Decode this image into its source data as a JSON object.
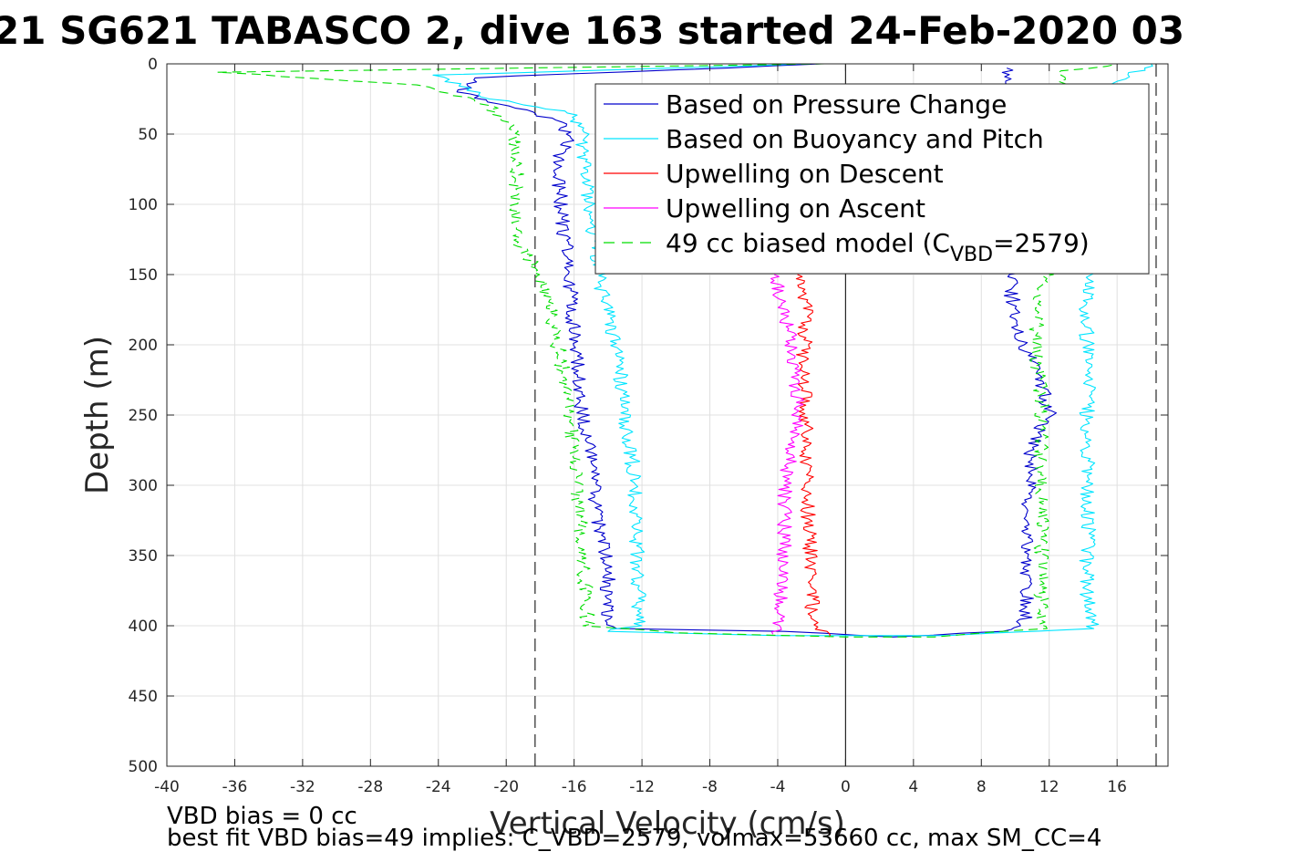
{
  "chart_data": {
    "type": "line",
    "title": "21 SG621 TABASCO 2, dive 163 started 24-Feb-2020 03",
    "xlabel": "Vertical Velocity (cm/s)",
    "ylabel": "Depth (m)",
    "xlim": [
      -40,
      19
    ],
    "ylim": [
      0,
      500
    ],
    "y_reversed": true,
    "grid": true,
    "legend_position": "top-right",
    "x_ticks": [
      "-40",
      "-36",
      "-32",
      "-28",
      "-24",
      "-20",
      "-16",
      "-12",
      "-8",
      "-4",
      "0",
      "4",
      "8",
      "12",
      "16"
    ],
    "y_ticks": [
      "0",
      "50",
      "100",
      "150",
      "200",
      "250",
      "300",
      "350",
      "400",
      "450",
      "500"
    ],
    "reference_lines": {
      "x_dashed": [
        -18.3,
        18.3
      ],
      "x_solid": [
        0
      ]
    },
    "series": [
      {
        "name": "Based on Pressure Change",
        "color": "#0000cc",
        "style": "solid",
        "points": [
          [
            -1,
            0
          ],
          [
            -22,
            10
          ],
          [
            -22.5,
            20
          ],
          [
            -20,
            30
          ],
          [
            -17,
            40
          ],
          [
            -16.3,
            50
          ],
          [
            -17,
            70
          ],
          [
            -16.8,
            100
          ],
          [
            -16.5,
            130
          ],
          [
            -16.2,
            160
          ],
          [
            -16,
            190
          ],
          [
            -15.8,
            220
          ],
          [
            -15.5,
            250
          ],
          [
            -15,
            280
          ],
          [
            -14.8,
            310
          ],
          [
            -14.3,
            340
          ],
          [
            -14,
            370
          ],
          [
            -14,
            395
          ],
          [
            -13.5,
            402
          ],
          [
            -4,
            404
          ],
          [
            3,
            408
          ],
          [
            9,
            404
          ],
          [
            10.5,
            400
          ],
          [
            10.7,
            370
          ],
          [
            10.7,
            340
          ],
          [
            10.8,
            300
          ],
          [
            11,
            270
          ],
          [
            12,
            250
          ],
          [
            11.5,
            220
          ],
          [
            10.5,
            200
          ],
          [
            10,
            180
          ],
          [
            9.8,
            165
          ],
          [
            10,
            150
          ],
          [
            9.8,
            100
          ],
          [
            10,
            60
          ],
          [
            10,
            20
          ],
          [
            9.5,
            3
          ]
        ]
      },
      {
        "name": "Based on Buoyancy and Pitch",
        "color": "#00e5ff",
        "style": "solid",
        "points": [
          [
            -2,
            0
          ],
          [
            -24,
            8
          ],
          [
            -21,
            25
          ],
          [
            -16,
            35
          ],
          [
            -15.5,
            50
          ],
          [
            -15.3,
            80
          ],
          [
            -15,
            110
          ],
          [
            -14.6,
            140
          ],
          [
            -14.4,
            160
          ],
          [
            -13.8,
            190
          ],
          [
            -13.3,
            220
          ],
          [
            -13,
            250
          ],
          [
            -12.6,
            280
          ],
          [
            -12.4,
            310
          ],
          [
            -12.3,
            340
          ],
          [
            -12.2,
            370
          ],
          [
            -12.2,
            400
          ],
          [
            -14,
            404
          ],
          [
            -4,
            407
          ],
          [
            6,
            407
          ],
          [
            14.5,
            402
          ],
          [
            14.2,
            370
          ],
          [
            14.3,
            330
          ],
          [
            14.3,
            290
          ],
          [
            14.2,
            250
          ],
          [
            14.4,
            220
          ],
          [
            14.2,
            190
          ],
          [
            14,
            170
          ],
          [
            14.6,
            155
          ],
          [
            14.6,
            100
          ],
          [
            15,
            20
          ],
          [
            18,
            0
          ]
        ]
      },
      {
        "name": "Upwelling on Descent",
        "color": "#ff0000",
        "style": "solid",
        "points": [
          [
            -2.5,
            150
          ],
          [
            -2.3,
            180
          ],
          [
            -2.5,
            210
          ],
          [
            -2.4,
            240
          ],
          [
            -2.3,
            270
          ],
          [
            -2.3,
            300
          ],
          [
            -2.2,
            330
          ],
          [
            -2,
            360
          ],
          [
            -2,
            390
          ],
          [
            -1.5,
            404
          ],
          [
            -1,
            408
          ]
        ]
      },
      {
        "name": "Upwelling on Ascent",
        "color": "#ff00ff",
        "style": "solid",
        "points": [
          [
            -4,
            406
          ],
          [
            -3.8,
            395
          ],
          [
            -3.8,
            370
          ],
          [
            -3.6,
            340
          ],
          [
            -3.6,
            300
          ],
          [
            -3.3,
            280
          ],
          [
            -2.8,
            250
          ],
          [
            -3,
            220
          ],
          [
            -3.3,
            190
          ],
          [
            -4,
            160
          ],
          [
            -4.2,
            150
          ]
        ]
      },
      {
        "name": "49 cc biased model (C_VBD=2579)",
        "color": "#00dd00",
        "style": "dashed",
        "points": [
          [
            -1,
            0
          ],
          [
            -37,
            6
          ],
          [
            -25,
            15
          ],
          [
            -21,
            30
          ],
          [
            -19.5,
            45
          ],
          [
            -19.4,
            80
          ],
          [
            -19.5,
            110
          ],
          [
            -19.2,
            130
          ],
          [
            -18,
            150
          ],
          [
            -17.3,
            180
          ],
          [
            -16.8,
            210
          ],
          [
            -16.4,
            240
          ],
          [
            -16.1,
            270
          ],
          [
            -15.8,
            300
          ],
          [
            -15.5,
            340
          ],
          [
            -15.3,
            380
          ],
          [
            -15.2,
            400
          ],
          [
            -10,
            405
          ],
          [
            0,
            408
          ],
          [
            5,
            408
          ],
          [
            11.5,
            402
          ],
          [
            11.5,
            370
          ],
          [
            11.6,
            330
          ],
          [
            11.5,
            300
          ],
          [
            11.5,
            270
          ],
          [
            11.6,
            240
          ],
          [
            11.3,
            210
          ],
          [
            11.2,
            180
          ],
          [
            11.4,
            160
          ],
          [
            11.8,
            150
          ],
          [
            11.6,
            100
          ],
          [
            11.8,
            40
          ],
          [
            13,
            5
          ],
          [
            16,
            0
          ]
        ]
      }
    ],
    "legend": {
      "entries": [
        {
          "label": "Based on Pressure Change",
          "color": "#0000cc",
          "dash": false
        },
        {
          "label": "Based on Buoyancy and Pitch",
          "color": "#00e5ff",
          "dash": false
        },
        {
          "label": "Upwelling on Descent",
          "color": "#ff0000",
          "dash": false
        },
        {
          "label": "Upwelling on Ascent",
          "color": "#ff00ff",
          "dash": false
        },
        {
          "label_prefix": "49 cc biased model (C",
          "label_sub": "VBD",
          "label_suffix": "=2579)",
          "color": "#00dd00",
          "dash": true
        }
      ]
    },
    "annotations": [
      "VBD bias = 0 cc",
      "best fit VBD bias=49 implies: C_VBD=2579, volmax=53660 cc, max SM_CC=4"
    ]
  }
}
